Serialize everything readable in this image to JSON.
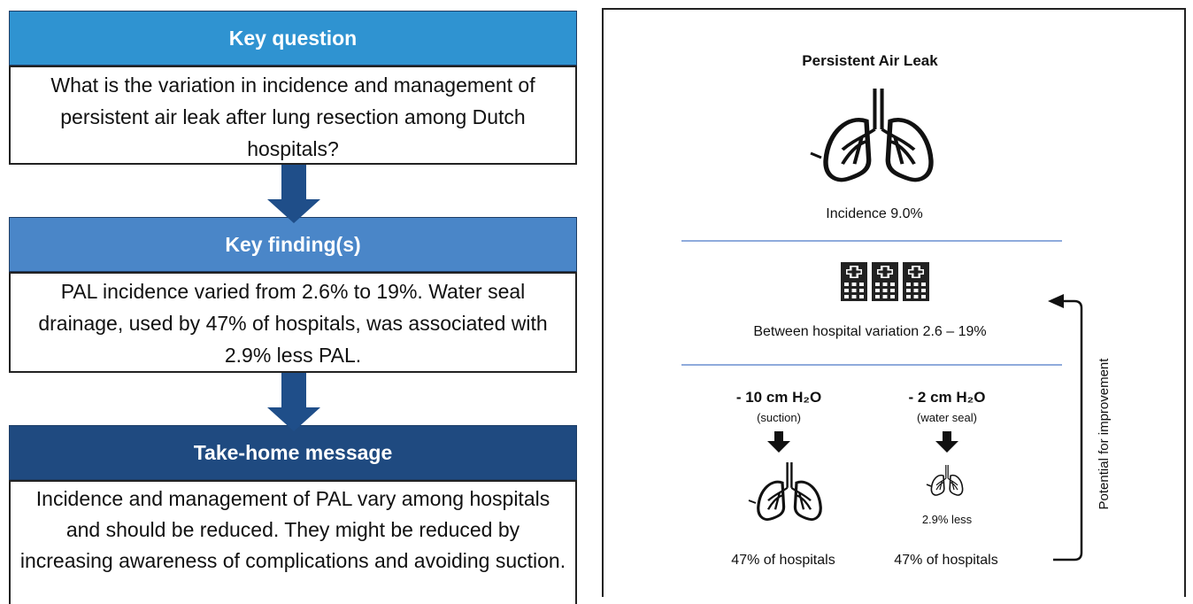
{
  "key_question": {
    "title": "Key question",
    "text": "What is the variation in incidence and management of persistent air leak after lung resection among Dutch hospitals?"
  },
  "key_findings": {
    "title": "Key finding(s)",
    "text": "PAL incidence varied from 2.6% to 19%. Water seal drainage, used by 47% of hospitals, was associated with 2.9% less PAL."
  },
  "take_home": {
    "title": "Take-home message",
    "text": "Incidence and management of PAL vary among hospitals and should be reduced. They might be reduced by increasing awareness of complications and avoiding suction."
  },
  "graphic": {
    "title": "Persistent Air Leak",
    "incidence": "Incidence  9.0%",
    "variation": "Between hospital variation 2.6 – 19%",
    "suction": {
      "pressure": "- 10 cm H₂O",
      "label": "(suction)",
      "share": "47% of hospitals"
    },
    "water_seal": {
      "pressure": "-  2 cm H₂O",
      "label": "(water seal)",
      "effect": "2.9% less",
      "share": "47% of hospitals"
    },
    "side_label": "Potential for improvement"
  }
}
